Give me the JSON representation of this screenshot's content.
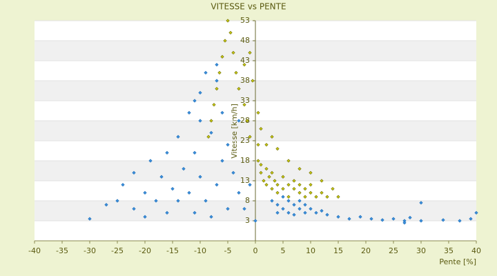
{
  "chart_data": {
    "type": "scatter",
    "title": "VITESSE vs PENTE",
    "xlabel": "Pente [%]",
    "ylabel": "Vitesse [km/h]",
    "xlim": [
      -40,
      40
    ],
    "xticks": [
      -40,
      -35,
      -30,
      -25,
      -20,
      -15,
      -10,
      -5,
      0,
      5,
      10,
      15,
      20,
      25,
      30,
      35,
      40
    ],
    "ylim": [
      -2,
      53
    ],
    "yticks": [
      53,
      48,
      43,
      38,
      33,
      28,
      23,
      18,
      13,
      8,
      3
    ],
    "grid": true,
    "series": [
      {
        "color": "#c8c814",
        "x": [
          -5,
          -5.5,
          -6,
          -6.5,
          -7,
          -7.5,
          -8,
          -8.5,
          -4.5,
          -4,
          -3.5,
          -3,
          -2,
          -1.5,
          -1,
          -0.5,
          -1,
          -2,
          0.5,
          0.5,
          1,
          1,
          1.5,
          2,
          2,
          2.5,
          3,
          3,
          3.5,
          4,
          4,
          5,
          5,
          6,
          6,
          7,
          7,
          8,
          8,
          9,
          9,
          10,
          10,
          11,
          12,
          13,
          14,
          15,
          2,
          4,
          6,
          8,
          10,
          12,
          0.5,
          1,
          3
        ],
        "y": [
          53,
          48,
          44,
          40,
          36,
          32,
          28,
          24,
          50,
          45,
          40,
          36,
          32,
          28,
          24,
          38,
          45,
          42,
          22,
          18,
          17,
          15,
          13,
          16,
          12,
          14,
          11,
          15,
          13,
          12,
          10,
          14,
          11,
          12,
          9,
          11,
          13,
          10,
          12,
          9,
          11,
          10,
          12,
          9,
          10,
          9,
          11,
          9,
          22,
          21,
          18,
          16,
          15,
          13,
          30,
          26,
          24
        ]
      },
      {
        "color": "#3c8fdc",
        "x": [
          -30,
          -27,
          -25,
          -24,
          -22,
          -22,
          -20,
          -20,
          -19,
          -18,
          -17,
          -16,
          -16,
          -15,
          -14,
          -14,
          -13,
          -12,
          -12,
          -11,
          -11,
          -10,
          -10,
          -9,
          -9,
          -8,
          -8,
          -7,
          -7,
          -6,
          -6,
          -5,
          -5,
          -4,
          -3,
          -3,
          -2,
          -1,
          0,
          3,
          4,
          4,
          5,
          5,
          6,
          6,
          7,
          7,
          8,
          8,
          9,
          9,
          10,
          11,
          12,
          13,
          15,
          17,
          19,
          21,
          23,
          25,
          27,
          28,
          30,
          34,
          37,
          39,
          40,
          30,
          27,
          -10,
          -11,
          -7
        ],
        "y": [
          3.5,
          7,
          8,
          12,
          6,
          15,
          10,
          4,
          18,
          8,
          14,
          20,
          5,
          11,
          24,
          8,
          16,
          30,
          10,
          5,
          20,
          35,
          14,
          40,
          8,
          25,
          4,
          38,
          12,
          30,
          18,
          22,
          6,
          15,
          10,
          28,
          6,
          12,
          3,
          8,
          7,
          5,
          9,
          6,
          8,
          5,
          7,
          4.5,
          6,
          8,
          5,
          7,
          6,
          5,
          5.5,
          4.5,
          4,
          3.5,
          4,
          3.5,
          3.2,
          3.5,
          3,
          3.8,
          3,
          3.2,
          3,
          3.5,
          5,
          7.5,
          2.5,
          28,
          33,
          42
        ]
      }
    ]
  }
}
